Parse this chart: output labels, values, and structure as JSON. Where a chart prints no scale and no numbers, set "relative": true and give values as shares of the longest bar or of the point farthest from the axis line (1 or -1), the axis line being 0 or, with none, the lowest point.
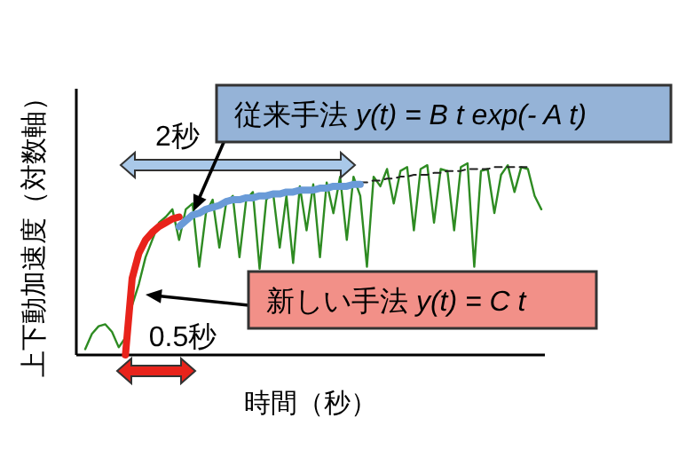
{
  "chart_data": {
    "type": "line",
    "relative": true,
    "xlabel": "時間（秒）",
    "ylabel": "上下動加速度（対数軸）",
    "grid": false,
    "marker": "none",
    "categories": [
      null,
      null,
      null,
      null,
      null,
      null,
      null,
      null,
      null,
      null,
      null,
      null,
      null,
      null,
      null,
      null,
      null,
      null,
      null,
      null,
      null,
      null,
      null,
      null,
      null,
      null,
      null,
      null,
      null,
      null,
      null,
      null,
      null,
      null,
      null,
      null,
      null,
      null,
      null,
      null,
      null,
      null,
      null,
      null,
      null,
      null,
      null,
      null,
      null,
      null,
      null,
      null,
      null,
      null,
      null,
      null,
      null,
      null,
      null,
      null,
      null,
      null,
      null,
      null,
      null,
      null,
      null,
      null,
      null
    ],
    "series": [
      {
        "color": "#2e8b22",
        "values": [
          0.03,
          0.11,
          0.15,
          0.16,
          0.12,
          0.04,
          0.09,
          0.26,
          0.37,
          0.51,
          0.6,
          0.69,
          0.72,
          0.76,
          0.6,
          0.76,
          0.79,
          0.46,
          0.74,
          0.81,
          0.56,
          0.79,
          0.83,
          0.51,
          0.81,
          0.85,
          0.45,
          0.81,
          0.85,
          0.56,
          0.83,
          0.48,
          0.88,
          0.65,
          0.89,
          0.51,
          0.9,
          0.74,
          0.93,
          0.6,
          0.93,
          0.83,
          0.46,
          0.93,
          0.88,
          0.97,
          0.79,
          0.96,
          0.98,
          0.65,
          0.97,
          0.99,
          0.69,
          0.97,
          0.96,
          0.65,
          0.98,
          1,
          0.46,
          0.96,
          0.97,
          0.74,
          0.94,
          0.99,
          0.85,
          0.98,
          0.97,
          0.83,
          0.76
        ]
      },
      {
        "color": "#222222",
        "line_style": "dashed",
        "values": [
          null,
          null,
          null,
          null,
          null,
          null,
          null,
          null,
          null,
          null,
          null,
          null,
          null,
          null,
          null,
          null,
          null,
          null,
          null,
          null,
          null,
          null,
          null,
          null,
          null,
          null,
          null,
          null,
          null,
          null,
          null,
          null,
          null,
          null,
          null,
          null,
          null,
          null,
          null,
          null,
          null,
          0.9,
          0.9,
          0.91,
          0.91,
          0.92,
          0.92,
          0.93,
          0.93,
          0.94,
          0.94,
          0.94,
          0.95,
          0.95,
          0.96,
          0.96,
          0.96,
          0.97,
          0.97,
          0.97,
          0.97,
          0.98,
          0.98,
          0.98,
          0.98,
          0.98,
          0.98,
          null,
          null
        ]
      },
      {
        "color": "#e8231b",
        "values": [
          null,
          null,
          null,
          null,
          null,
          null,
          0,
          0.4,
          0.53,
          0.6,
          0.64,
          0.67,
          0.69,
          0.71,
          0.72,
          null,
          null,
          null,
          null,
          null,
          null,
          null,
          null,
          null,
          null,
          null,
          null,
          null,
          null,
          null,
          null,
          null,
          null,
          null,
          null,
          null,
          null,
          null,
          null,
          null,
          null,
          null,
          null,
          null,
          null,
          null,
          null,
          null,
          null,
          null,
          null,
          null,
          null,
          null,
          null,
          null,
          null,
          null,
          null,
          null,
          null,
          null,
          null,
          null,
          null,
          null,
          null,
          null,
          null
        ]
      },
      {
        "color": "#6a9bd8",
        "values": [
          null,
          null,
          null,
          null,
          null,
          null,
          null,
          null,
          null,
          null,
          null,
          null,
          null,
          null,
          0.67,
          0.7,
          0.73,
          0.74,
          0.76,
          0.77,
          0.78,
          0.8,
          0.81,
          0.81,
          0.82,
          0.82,
          0.83,
          0.83,
          0.84,
          0.84,
          0.85,
          0.85,
          0.86,
          0.86,
          0.86,
          0.87,
          0.87,
          0.88,
          0.88,
          0.88,
          0.89,
          0.89,
          null,
          null,
          null,
          null,
          null,
          null,
          null,
          null,
          null,
          null,
          null,
          null,
          null,
          null,
          null,
          null,
          null,
          null,
          null,
          null,
          null,
          null,
          null,
          null,
          null,
          null,
          null
        ]
      }
    ],
    "annotations": [
      "従来手法 y(t) = B t exp(- A t)",
      "新しい手法 y(t) = C t",
      "2秒",
      "0.5秒"
    ]
  }
}
